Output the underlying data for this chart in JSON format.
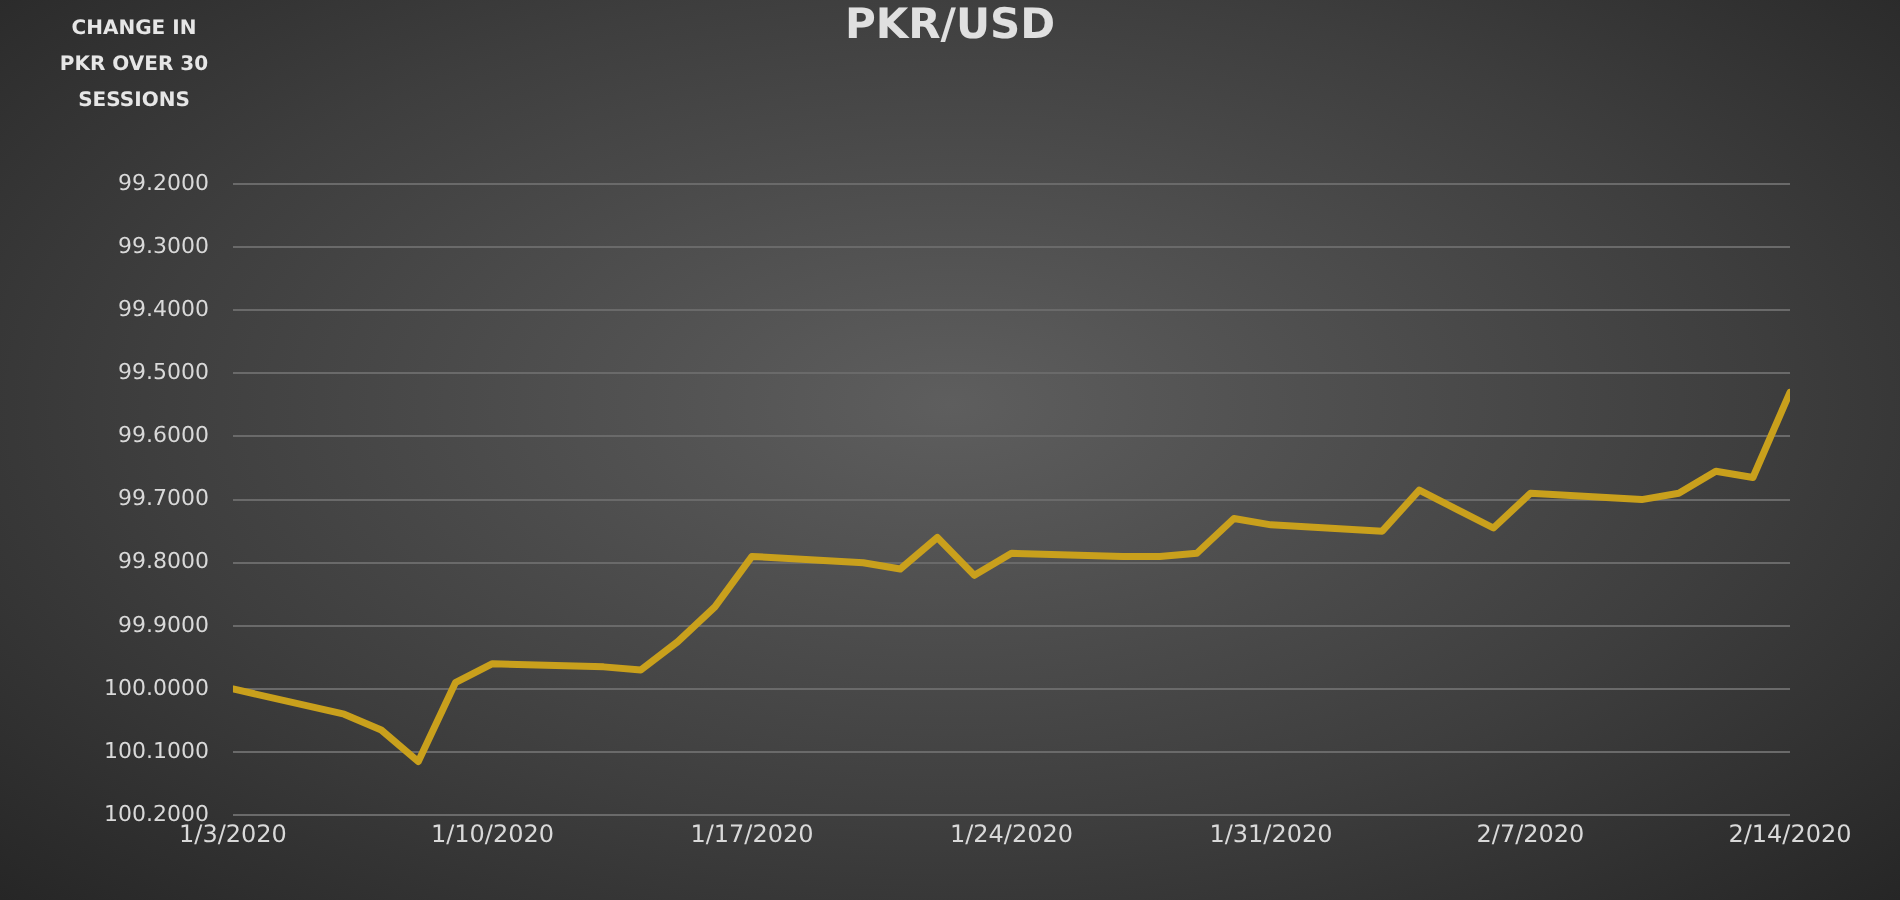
{
  "chart_data": {
    "type": "line",
    "title": "PKR/USD",
    "ylabel": "CHANGE IN PKR OVER 30 SESSIONS",
    "x": [
      "2020-01-03",
      "2020-01-06",
      "2020-01-07",
      "2020-01-08",
      "2020-01-09",
      "2020-01-10",
      "2020-01-13",
      "2020-01-14",
      "2020-01-15",
      "2020-01-16",
      "2020-01-17",
      "2020-01-20",
      "2020-01-21",
      "2020-01-22",
      "2020-01-23",
      "2020-01-24",
      "2020-01-27",
      "2020-01-28",
      "2020-01-29",
      "2020-01-30",
      "2020-01-31",
      "2020-02-03",
      "2020-02-04",
      "2020-02-05",
      "2020-02-06",
      "2020-02-07",
      "2020-02-10",
      "2020-02-11",
      "2020-02-12",
      "2020-02-13",
      "2020-02-14"
    ],
    "series": [
      {
        "color": "#c9a01c",
        "values": [
          100.0,
          100.04,
          100.065,
          100.115,
          99.99,
          99.96,
          99.965,
          99.97,
          99.925,
          99.87,
          99.79,
          99.8,
          99.81,
          99.76,
          99.82,
          99.785,
          99.79,
          99.79,
          99.785,
          99.73,
          99.74,
          99.75,
          99.685,
          99.715,
          99.745,
          99.69,
          99.7,
          99.69,
          99.655,
          99.665,
          99.53
        ]
      }
    ],
    "xlim": [
      "2020-01-03",
      "2020-02-14"
    ],
    "xticks": [
      {
        "value": "2020-01-03",
        "label": "1/3/2020"
      },
      {
        "value": "2020-01-10",
        "label": "1/10/2020"
      },
      {
        "value": "2020-01-17",
        "label": "1/17/2020"
      },
      {
        "value": "2020-01-24",
        "label": "1/24/2020"
      },
      {
        "value": "2020-01-31",
        "label": "1/31/2020"
      },
      {
        "value": "2020-02-07",
        "label": "2/7/2020"
      },
      {
        "value": "2020-02-14",
        "label": "2/14/2020"
      }
    ],
    "ylim": [
      100.2,
      99.2
    ],
    "yticks": [
      {
        "value": 99.2,
        "label": "99.2000"
      },
      {
        "value": 99.3,
        "label": "99.3000"
      },
      {
        "value": 99.4,
        "label": "99.4000"
      },
      {
        "value": 99.5,
        "label": "99.5000"
      },
      {
        "value": 99.6,
        "label": "99.6000"
      },
      {
        "value": 99.7,
        "label": "99.7000"
      },
      {
        "value": 99.8,
        "label": "99.8000"
      },
      {
        "value": 99.9,
        "label": "99.9000"
      },
      {
        "value": 100.0,
        "label": "100.0000"
      },
      {
        "value": 100.1,
        "label": "100.1000"
      },
      {
        "value": 100.2,
        "label": "100.2000"
      }
    ],
    "grid": "y",
    "legend": false,
    "marker": "none",
    "line_style": "solid"
  }
}
